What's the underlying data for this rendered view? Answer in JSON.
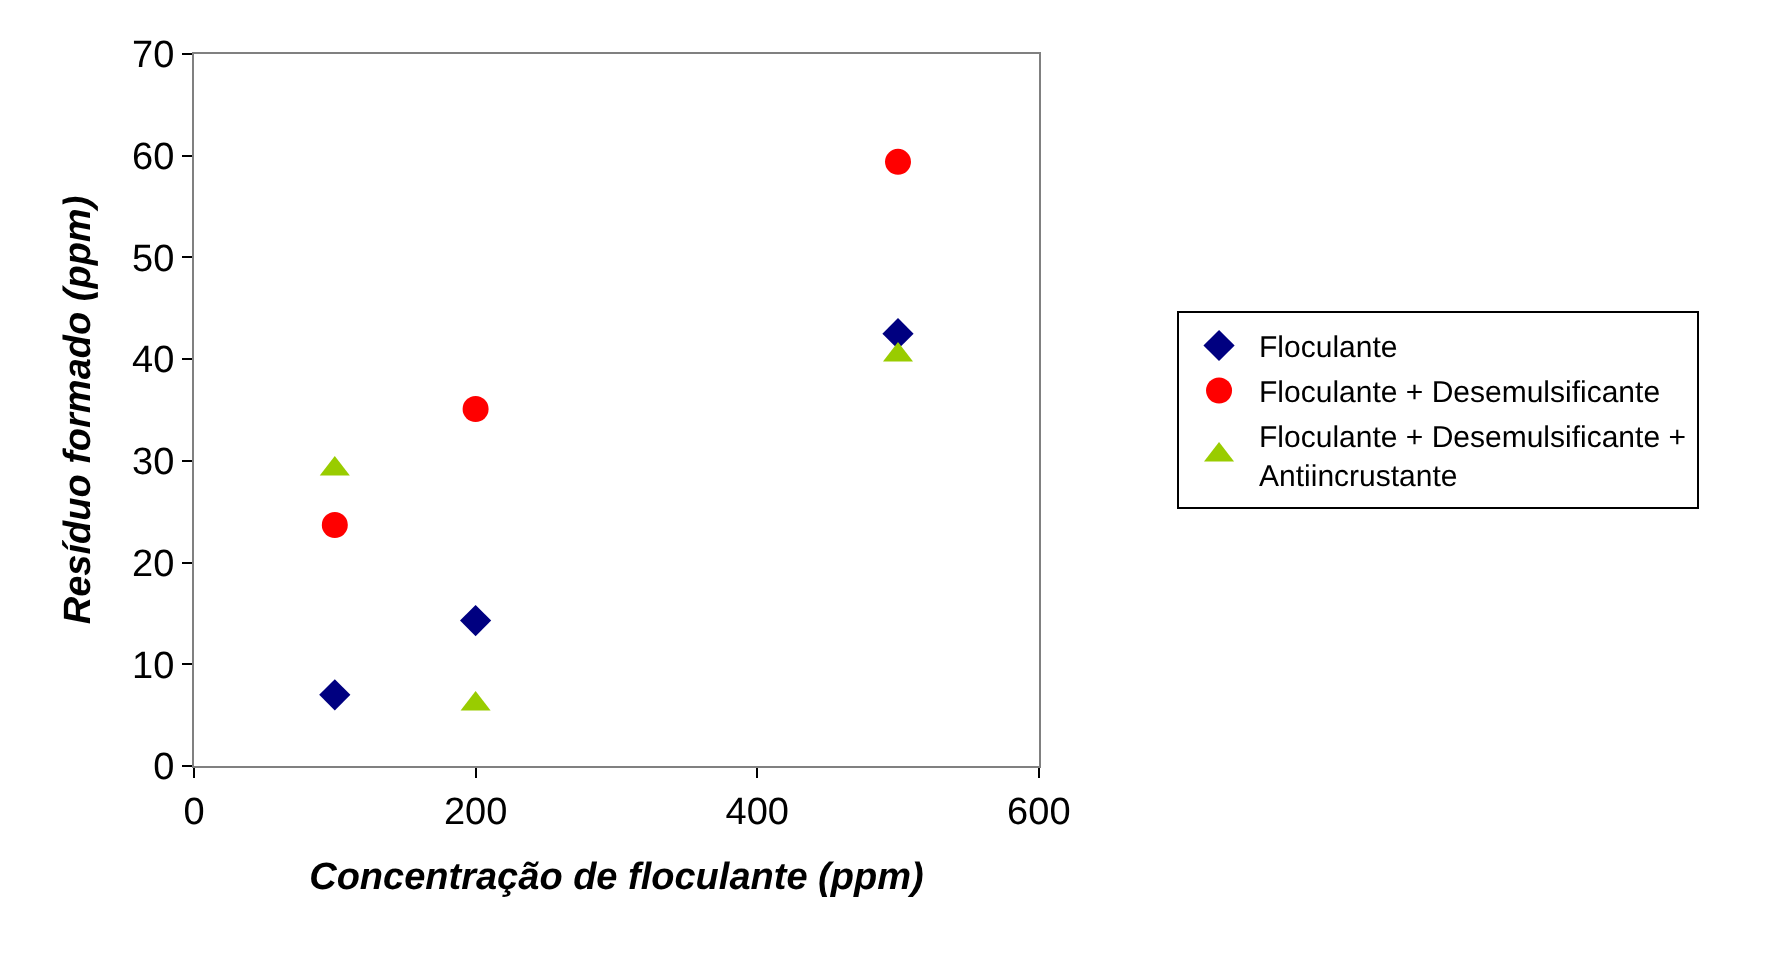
{
  "chart_data": {
    "type": "scatter",
    "xlabel": "Concentração de floculante (ppm)",
    "ylabel": "Resíduo formado (ppm)",
    "xlim": [
      0,
      600
    ],
    "xticks": [
      0,
      200,
      400,
      600
    ],
    "ylim": [
      0,
      70
    ],
    "yticks": [
      0,
      10,
      20,
      30,
      40,
      50,
      60,
      70
    ],
    "legend": "right",
    "series": [
      {
        "name": "Floculante",
        "color": "#000080",
        "marker": "diamond",
        "x": [
          100,
          200,
          500
        ],
        "values": [
          7.0,
          14.3,
          42.5
        ]
      },
      {
        "name": "Floculante + Desemulsificante",
        "color": "#ff0000",
        "marker": "circle",
        "x": [
          100,
          200,
          500
        ],
        "values": [
          23.7,
          35.1,
          59.4
        ]
      },
      {
        "name": "Floculante + Desemulsificante + Antiincrustante",
        "color": "#99cc00",
        "marker": "triangle",
        "x": [
          100,
          200,
          500
        ],
        "values": [
          29.2,
          6.1,
          40.4
        ]
      }
    ]
  }
}
